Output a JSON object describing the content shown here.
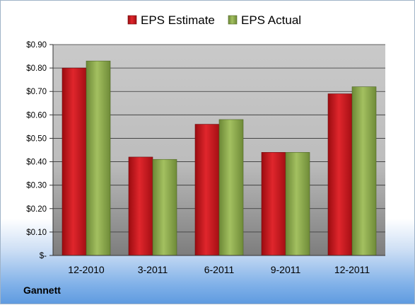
{
  "company": "Gannett",
  "chart_data": {
    "type": "bar",
    "categories": [
      "12-2010",
      "3-2011",
      "6-2011",
      "9-2011",
      "12-2011"
    ],
    "series": [
      {
        "name": "EPS Estimate",
        "values": [
          0.8,
          0.42,
          0.56,
          0.44,
          0.69
        ],
        "color": "#c0141a"
      },
      {
        "name": "EPS Actual",
        "values": [
          0.83,
          0.41,
          0.58,
          0.44,
          0.72
        ],
        "color": "#8aa84a"
      }
    ],
    "y_ticks": [
      {
        "value": 0.0,
        "label": "$-"
      },
      {
        "value": 0.1,
        "label": "$0.10"
      },
      {
        "value": 0.2,
        "label": "$0.20"
      },
      {
        "value": 0.3,
        "label": "$0.30"
      },
      {
        "value": 0.4,
        "label": "$0.40"
      },
      {
        "value": 0.5,
        "label": "$0.50"
      },
      {
        "value": 0.6,
        "label": "$0.60"
      },
      {
        "value": 0.7,
        "label": "$0.70"
      },
      {
        "value": 0.8,
        "label": "$0.80"
      },
      {
        "value": 0.9,
        "label": "$0.90"
      }
    ],
    "ylim": [
      0,
      0.9
    ],
    "grid": true,
    "legend_position": "top"
  }
}
